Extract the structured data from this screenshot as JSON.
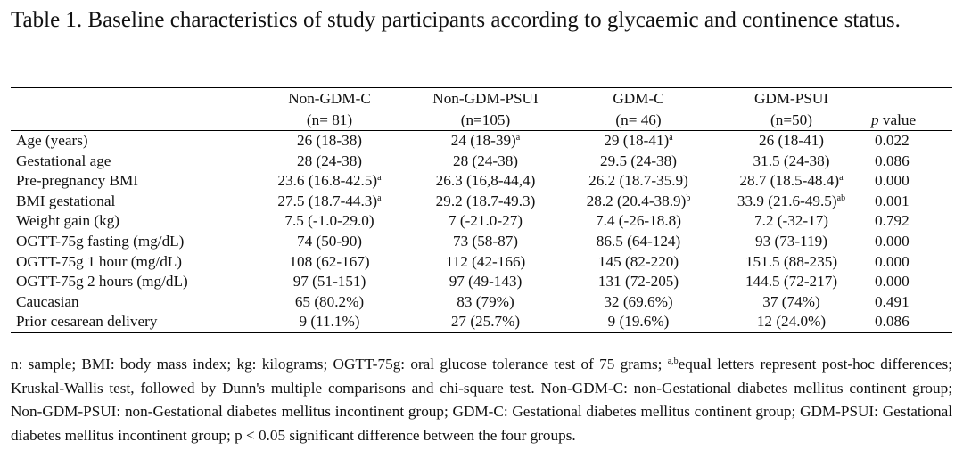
{
  "caption": "Table 1. Baseline characteristics of study participants according to glycaemic and continence status.",
  "table": {
    "headers": [
      {
        "name": "Non-GDM-C",
        "n": "(n= 81)"
      },
      {
        "name": "Non-GDM-PSUI",
        "n": "(n=105)"
      },
      {
        "name": "GDM-C",
        "n": "(n= 46)"
      },
      {
        "name": "GDM-PSUI",
        "n": "(n=50)"
      }
    ],
    "p_header_italic": "p",
    "p_header_rest": " value",
    "rows": [
      {
        "label": "Age (years)",
        "cells": [
          {
            "v": "26 (18-38)",
            "s": ""
          },
          {
            "v": "24 (18-39)",
            "s": "a"
          },
          {
            "v": "29 (18-41)",
            "s": "a"
          },
          {
            "v": "26 (18-41)",
            "s": ""
          }
        ],
        "p": "0.022"
      },
      {
        "label": "Gestational age",
        "cells": [
          {
            "v": "28 (24-38)",
            "s": ""
          },
          {
            "v": "28 (24-38)",
            "s": ""
          },
          {
            "v": "29.5 (24-38)",
            "s": ""
          },
          {
            "v": "31.5 (24-38)",
            "s": ""
          }
        ],
        "p": "0.086"
      },
      {
        "label": "Pre-pregnancy BMI",
        "cells": [
          {
            "v": "23.6 (16.8-42.5)",
            "s": "a"
          },
          {
            "v": "26.3 (16,8-44,4)",
            "s": ""
          },
          {
            "v": "26.2 (18.7-35.9)",
            "s": ""
          },
          {
            "v": "28.7 (18.5-48.4)",
            "s": "a"
          }
        ],
        "p": "0.000"
      },
      {
        "label": "BMI gestational",
        "cells": [
          {
            "v": "27.5 (18.7-44.3)",
            "s": "a"
          },
          {
            "v": "29.2 (18.7-49.3)",
            "s": ""
          },
          {
            "v": "28.2 (20.4-38.9)",
            "s": "b"
          },
          {
            "v": "33.9 (21.6-49.5)",
            "s": "ab"
          }
        ],
        "p": "0.001"
      },
      {
        "label": "Weight gain (kg)",
        "cells": [
          {
            "v": "7.5 (-1.0-29.0)",
            "s": ""
          },
          {
            "v": "7 (-21.0-27)",
            "s": ""
          },
          {
            "v": "7.4 (-26-18.8)",
            "s": ""
          },
          {
            "v": "7.2 (-32-17)",
            "s": ""
          }
        ],
        "p": "0.792"
      },
      {
        "label": "OGTT-75g fasting (mg/dL)",
        "cells": [
          {
            "v": "74 (50-90)",
            "s": ""
          },
          {
            "v": "73 (58-87)",
            "s": ""
          },
          {
            "v": "86.5 (64-124)",
            "s": ""
          },
          {
            "v": "93 (73-119)",
            "s": ""
          }
        ],
        "p": "0.000"
      },
      {
        "label": "OGTT-75g 1 hour (mg/dL)",
        "cells": [
          {
            "v": "108 (62-167)",
            "s": ""
          },
          {
            "v": "112 (42-166)",
            "s": ""
          },
          {
            "v": "145 (82-220)",
            "s": ""
          },
          {
            "v": "151.5 (88-235)",
            "s": ""
          }
        ],
        "p": "0.000"
      },
      {
        "label": "OGTT-75g 2 hours (mg/dL)",
        "cells": [
          {
            "v": "97 (51-151)",
            "s": ""
          },
          {
            "v": "97 (49-143)",
            "s": ""
          },
          {
            "v": "131 (72-205)",
            "s": ""
          },
          {
            "v": "144.5 (72-217)",
            "s": ""
          }
        ],
        "p": "0.000"
      },
      {
        "label": "Caucasian",
        "cells": [
          {
            "v": "65 (80.2%)",
            "s": ""
          },
          {
            "v": "83 (79%)",
            "s": ""
          },
          {
            "v": "32 (69.6%)",
            "s": ""
          },
          {
            "v": "37 (74%)",
            "s": ""
          }
        ],
        "p": "0.491"
      },
      {
        "label": "Prior cesarean delivery",
        "cells": [
          {
            "v": "9 (11.1%)",
            "s": ""
          },
          {
            "v": "27 (25.7%)",
            "s": ""
          },
          {
            "v": "9 (19.6%)",
            "s": ""
          },
          {
            "v": "12 (24.0%)",
            "s": ""
          }
        ],
        "p": "0.086"
      }
    ]
  },
  "notes": {
    "part1": "n: sample; BMI: body mass index; kg: kilograms; OGTT-75g: oral glucose tolerance test of 75 grams; ",
    "sup": "a,b",
    "part2": "equal letters represent post-hoc differences; Kruskal-Wallis test, followed by Dunn's multiple comparisons and chi-square test. Non-GDM-C: non-Gestational diabetes mellitus continent group; Non-GDM-PSUI: non-Gestational diabetes mellitus incontinent group; GDM-C: Gestational diabetes mellitus continent group; GDM-PSUI: Gestational diabetes mellitus incontinent group; p < 0.05 significant difference between the four groups."
  }
}
